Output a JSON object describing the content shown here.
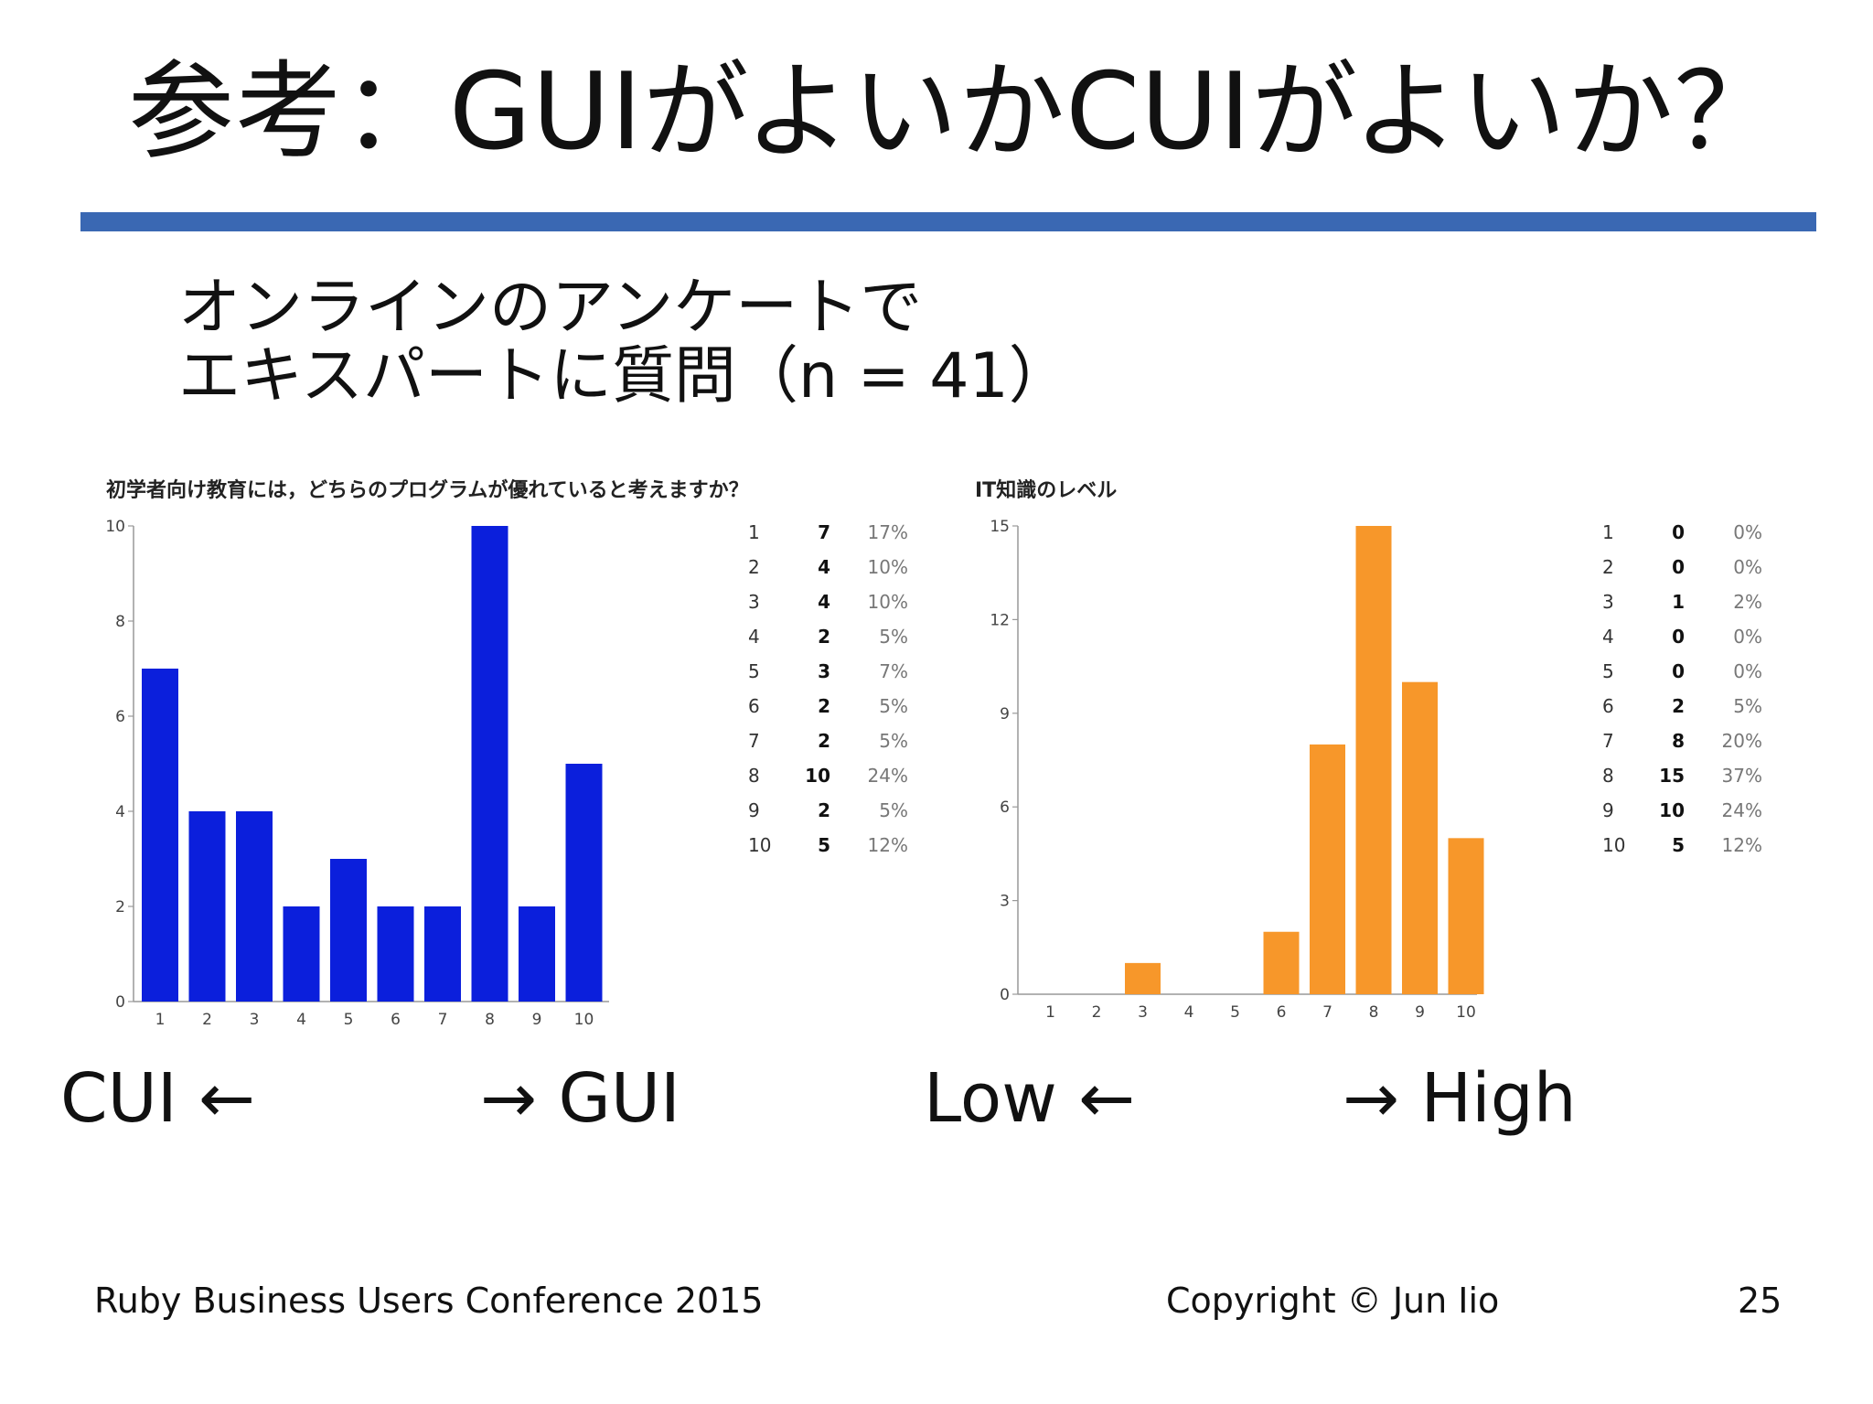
{
  "slide": {
    "title": "参考：GUIがよいかCUIがよいか？",
    "subtitle_line1": "オンラインのアンケートで",
    "subtitle_line2": "エキスパートに質問（n = 41）",
    "left_axis_left": "CUI ←",
    "left_axis_right": "→ GUI",
    "right_axis_left": "Low ←",
    "right_axis_right": "→ High",
    "footer_left": "Ruby Business Users Conference 2015",
    "footer_center": "Copyright © Jun Iio",
    "page_number": "25",
    "accent_color": "#3a68b3"
  },
  "chart_data": [
    {
      "type": "bar",
      "title": "初学者向け教育には，どちらのプログラムが優れていると考えますか？",
      "categories": [
        "1",
        "2",
        "3",
        "4",
        "5",
        "6",
        "7",
        "8",
        "9",
        "10"
      ],
      "values": [
        7,
        4,
        4,
        2,
        3,
        2,
        2,
        10,
        2,
        5
      ],
      "percentages": [
        "17%",
        "10%",
        "10%",
        "5%",
        "7%",
        "5%",
        "5%",
        "24%",
        "5%",
        "12%"
      ],
      "yticks": [
        0,
        2,
        4,
        6,
        8,
        10
      ],
      "ylim": [
        0,
        10
      ],
      "color": "#0b1fdc"
    },
    {
      "type": "bar",
      "title": "IT知識のレベル",
      "categories": [
        "1",
        "2",
        "3",
        "4",
        "5",
        "6",
        "7",
        "8",
        "9",
        "10"
      ],
      "values": [
        0,
        0,
        1,
        0,
        0,
        2,
        8,
        15,
        10,
        5
      ],
      "percentages": [
        "0%",
        "0%",
        "2%",
        "0%",
        "0%",
        "5%",
        "20%",
        "37%",
        "24%",
        "12%"
      ],
      "yticks": [
        0,
        3,
        6,
        9,
        12,
        15
      ],
      "ylim": [
        0,
        15
      ],
      "color": "#f7972a"
    }
  ]
}
